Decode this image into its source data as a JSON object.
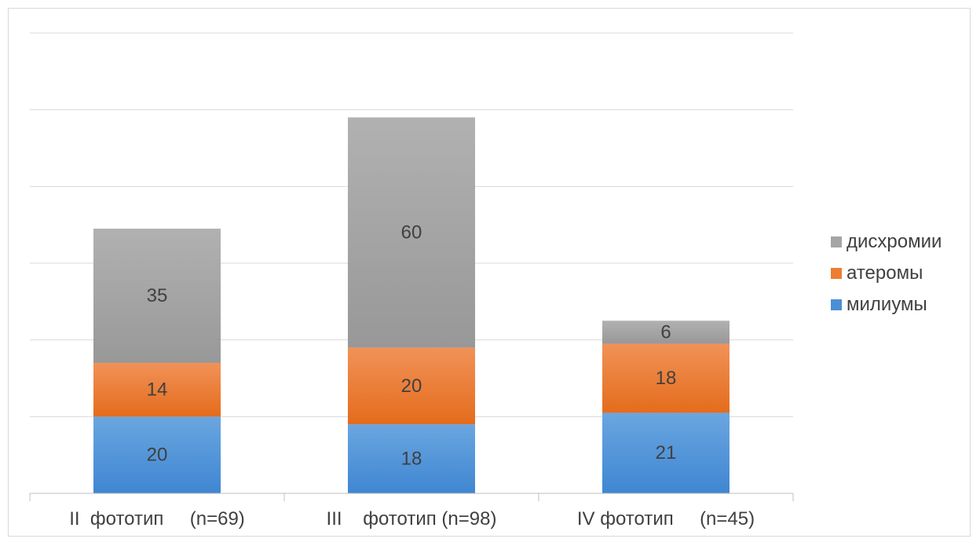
{
  "chart_data": {
    "type": "bar",
    "stacked": true,
    "categories": [
      "II  фототип     (n=69)",
      "III    фототип (n=98)",
      "IV фототип     (n=45)"
    ],
    "series": [
      {
        "name": "милиумы",
        "values": [
          20,
          18,
          21
        ],
        "color": "#4a8fd6"
      },
      {
        "name": "атеромы",
        "values": [
          14,
          20,
          18
        ],
        "color": "#ed7d31"
      },
      {
        "name": "дисхромии",
        "values": [
          35,
          60,
          6
        ],
        "color": "#a5a5a5"
      }
    ],
    "ylim": [
      0,
      120
    ],
    "ymajor": 20,
    "grid": true,
    "y_tick_labels_shown": false,
    "legend_position": "right"
  }
}
